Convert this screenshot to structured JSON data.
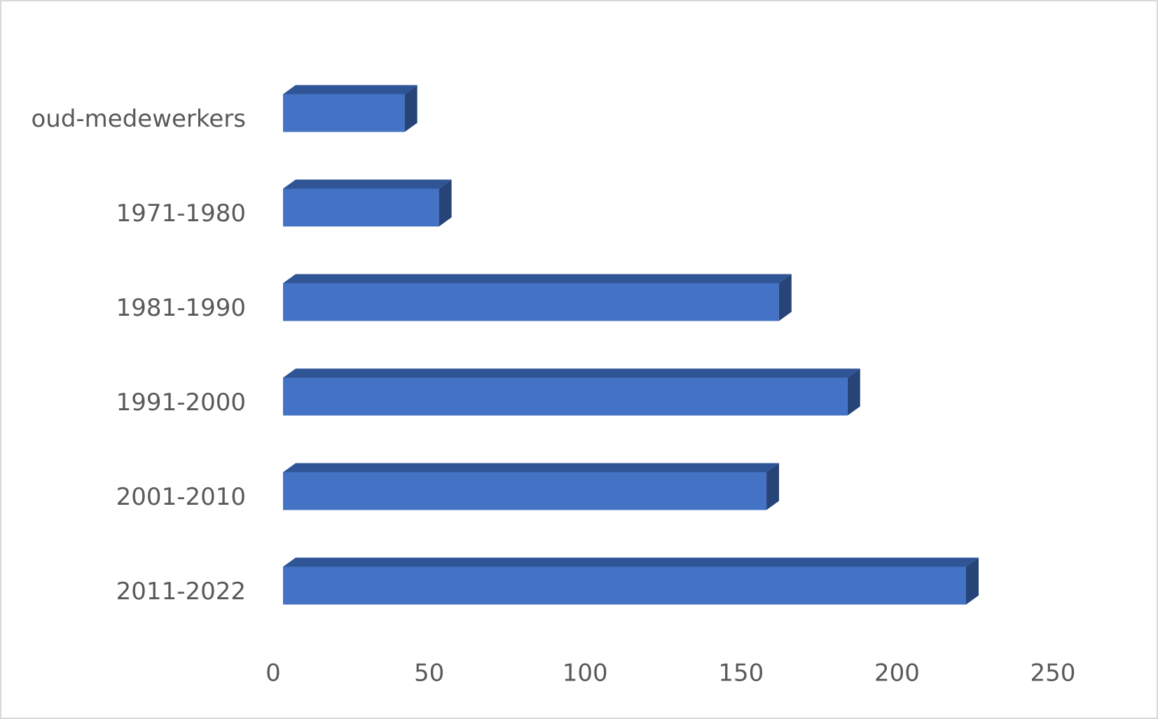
{
  "chart_data": {
    "type": "bar3d_horizontal",
    "categories": [
      "oud-medewerkers",
      "1971-1980",
      "1981-1990",
      "1991-2000",
      "2001-2010",
      "2011-2022"
    ],
    "values": [
      39,
      50,
      159,
      181,
      155,
      219
    ],
    "color": "#4472c4",
    "xlim": [
      0,
      250
    ],
    "xticks": [
      0,
      50,
      100,
      150,
      200,
      250
    ],
    "grid": false
  }
}
